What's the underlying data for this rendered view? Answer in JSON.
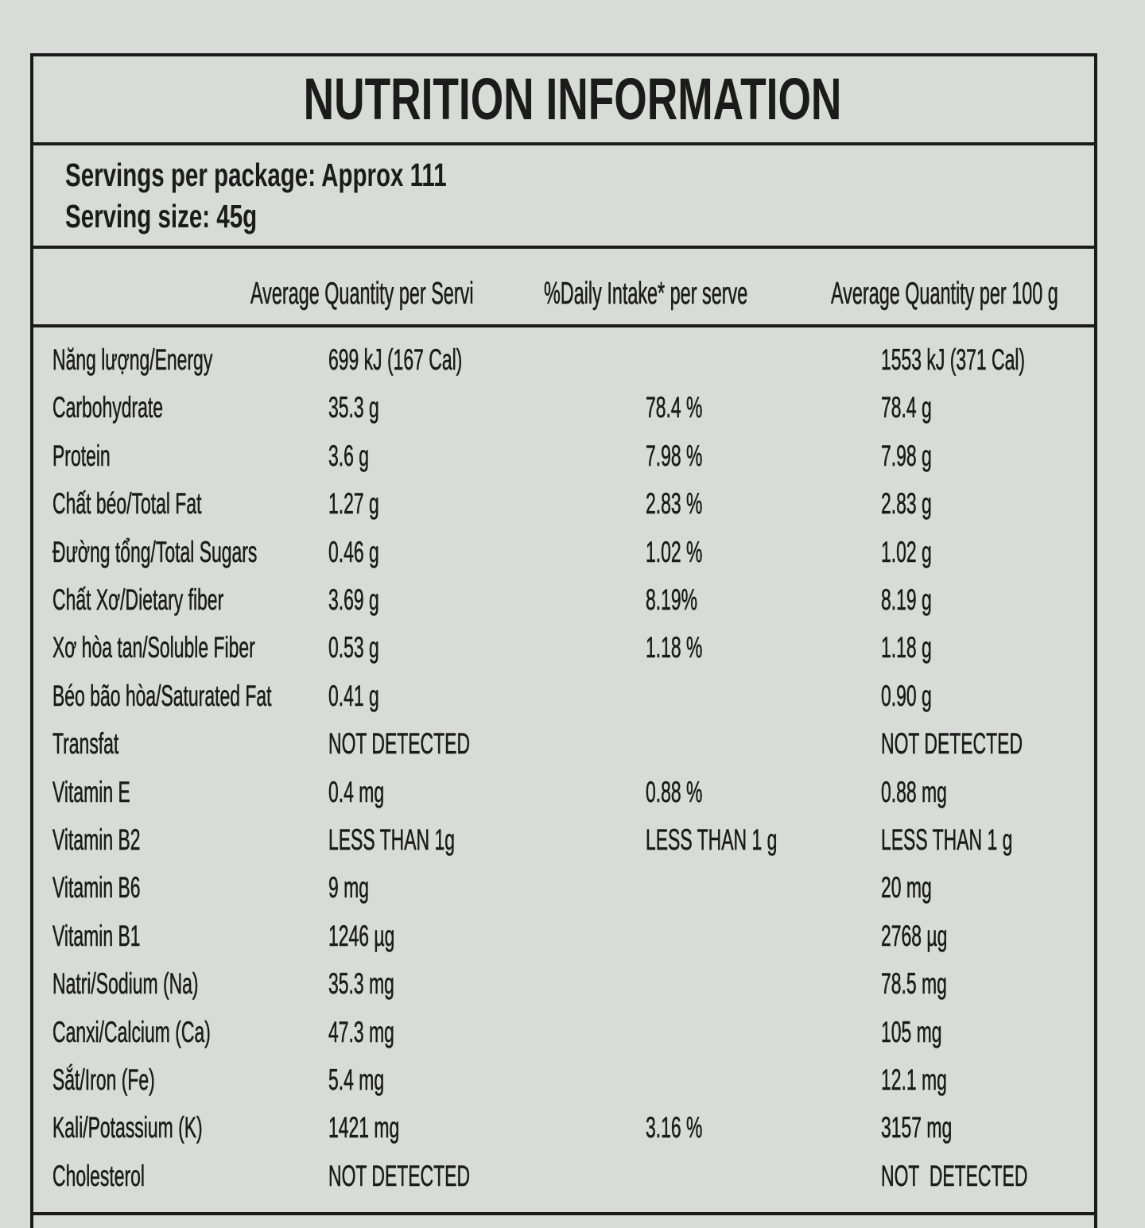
{
  "header": {
    "title": "NUTRITION INFORMATION",
    "servings_per_package": "Servings per package: Approx 111",
    "serving_size": "Serving size: 45g"
  },
  "table": {
    "columns": {
      "per_serve": "Average Quantity per Servi",
      "daily": "%Daily Intake* per serve",
      "per_100g": "Average Quantity per 100 g"
    },
    "rows": [
      {
        "name": "Năng lượng/Energy",
        "per_serve": "699 kJ (167 Cal)",
        "per_100g": "1553 kJ (371 Cal)"
      },
      {
        "name": "Carbohydrate",
        "per_serve": "35.3 g",
        "daily": "78.4 %",
        "per_100g": "78.4 g"
      },
      {
        "name": "Protein",
        "per_serve": "3.6 g",
        "daily": "7.98 %",
        "per_100g": "7.98 g"
      },
      {
        "name": "Chất béo/Total Fat",
        "per_serve": "1.27 g",
        "daily": "2.83 %",
        "per_100g": "2.83 g"
      },
      {
        "name": "Đường tổng/Total Sugars",
        "per_serve": "0.46 g",
        "daily": "1.02 %",
        "per_100g": "1.02 g"
      },
      {
        "name": "Chất Xơ/Dietary fiber",
        "per_serve": "3.69 g",
        "daily": "8.19%",
        "per_100g": "8.19 g"
      },
      {
        "name": "Xơ hòa tan/Soluble Fiber",
        "per_serve": "0.53 g",
        "daily": "1.18 %",
        "per_100g": "1.18 g"
      },
      {
        "name": "Béo bão hòa/Saturated Fat",
        "per_serve": "0.41 g",
        "per_100g": "0.90 g"
      },
      {
        "name": "Transfat",
        "per_serve": "NOT DETECTED",
        "per_100g": "NOT DETECTED"
      },
      {
        "name": "Vitamin E",
        "per_serve": "0.4 mg",
        "daily": "0.88 %",
        "per_100g": "0.88 mg"
      },
      {
        "name": "Vitamin B2",
        "per_serve": "LESS THAN 1g",
        "daily": "LESS THAN 1 g",
        "per_100g": "LESS THAN 1 g"
      },
      {
        "name": "Vitamin B6",
        "per_serve": "9 mg",
        "per_100g": "20 mg"
      },
      {
        "name": "Vitamin B1",
        "per_serve": "1246 µg",
        "per_100g": "2768 µg"
      },
      {
        "name": "Natri/Sodium (Na)",
        "per_serve": "35.3 mg",
        "per_100g": "78.5 mg"
      },
      {
        "name": "Canxi/Calcium (Ca)",
        "per_serve": "47.3 mg",
        "per_100g": "105 mg"
      },
      {
        "name": "Sắt/Iron (Fe)",
        "per_serve": "5.4 mg",
        "per_100g": "12.1 mg"
      },
      {
        "name": "Kali/Potassium (K)",
        "per_serve": "1421 mg",
        "daily": "3.16 %",
        "per_100g": "3157 mg"
      },
      {
        "name": "Cholesterol",
        "per_serve": "NOT DETECTED",
        "per_100g": "NOT  DETECTED"
      }
    ]
  }
}
